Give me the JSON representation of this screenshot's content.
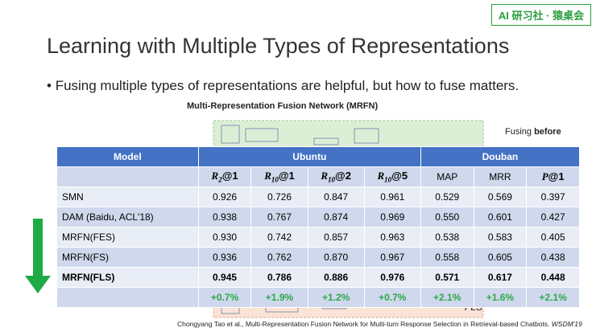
{
  "badge": "AI 研习社 · 猿桌会",
  "title": "Learning with Multiple Types of Representations",
  "bullet": "Fusing multiple types of representations are helpful, but how to fuse matters.",
  "figure": {
    "caption": "Multi-Representation Fusion Network (MRFN)",
    "note": {
      "text": "Fusing ",
      "bold": "before"
    },
    "label": "FLS"
  },
  "table": {
    "groups": [
      "Model",
      "Ubuntu",
      "Douban"
    ],
    "metrics": [
      {
        "base": "R",
        "sub": "2",
        "rest": "@1"
      },
      {
        "base": "R",
        "sub": "10",
        "rest": "@1"
      },
      {
        "base": "R",
        "sub": "10",
        "rest": "@2"
      },
      {
        "base": "R",
        "sub": "10",
        "rest": "@5"
      },
      {
        "text": "MAP"
      },
      {
        "text": "MRR"
      },
      {
        "base": "P",
        "rest": "@1"
      }
    ],
    "rows": [
      {
        "model": "SMN",
        "values": [
          "0.926",
          "0.726",
          "0.847",
          "0.961",
          "0.529",
          "0.569",
          "0.397"
        ]
      },
      {
        "model": "DAM (Baidu, ACL'18)",
        "values": [
          "0.938",
          "0.767",
          "0.874",
          "0.969",
          "0.550",
          "0.601",
          "0.427"
        ]
      },
      {
        "model": "MRFN(FES)",
        "values": [
          "0.930",
          "0.742",
          "0.857",
          "0.963",
          "0.538",
          "0.583",
          "0.405"
        ]
      },
      {
        "model": "MRFN(FS)",
        "values": [
          "0.936",
          "0.762",
          "0.870",
          "0.967",
          "0.558",
          "0.605",
          "0.438"
        ]
      },
      {
        "model": "MRFN(FLS)",
        "values": [
          "0.945",
          "0.786",
          "0.886",
          "0.976",
          "0.571",
          "0.617",
          "0.448"
        ],
        "bold": true
      }
    ],
    "improvements": [
      "+0.7%",
      "+1.9%",
      "+1.2%",
      "+0.7%",
      "+2.1%",
      "+1.6%",
      "+2.1%"
    ]
  },
  "citation": {
    "text": "Chongyang Tao et al., Multi-Representation Fusion Network for Multi-turn Response Selection in Retrieval-based Chatbots. ",
    "venue": "WSDM'19"
  }
}
